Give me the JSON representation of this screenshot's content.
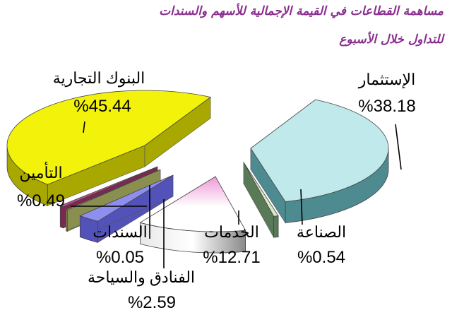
{
  "title_line1": "مساهمة القطاعات في القيمة الإجمالية للأسهم والسندات",
  "title_line2": "للتداول خلال الأسبوع",
  "chart_data": {
    "type": "pie",
    "title": "مساهمة القطاعات في القيمة الإجمالية للأسهم والسندات للتداول خلال الأسبوع",
    "three_d": true,
    "exploded": true,
    "unit": "%",
    "slices": [
      {
        "label": "الإستثمار",
        "value": 38.18,
        "display": "%38.18",
        "color": "#bfe9ea",
        "side_color": "#4d8b91"
      },
      {
        "label": "الصناعة",
        "value": 0.54,
        "display": "%0.54",
        "color": "#dbe8c7",
        "side_color": "#597a57"
      },
      {
        "label": "الخدمات",
        "value": 12.71,
        "display": "%12.71",
        "color": "#ee9ad6",
        "side_color": "#9c9c9c"
      },
      {
        "label": "الفنادق والسياحة",
        "value": 2.59,
        "display": "%2.59",
        "color": "#8e8ef0",
        "side_color": "#5252b8"
      },
      {
        "label": "السندات",
        "value": 0.05,
        "display": "%0.05",
        "color": "#d9dfa6",
        "side_color": "#8a8f4f"
      },
      {
        "label": "التأمين",
        "value": 0.49,
        "display": "%0.49",
        "color": "#c05086",
        "side_color": "#7a2a52"
      },
      {
        "label": "البنوك التجارية",
        "value": 45.44,
        "display": "%45.44",
        "color": "#f2f20a",
        "side_color": "#a8a800"
      }
    ]
  }
}
